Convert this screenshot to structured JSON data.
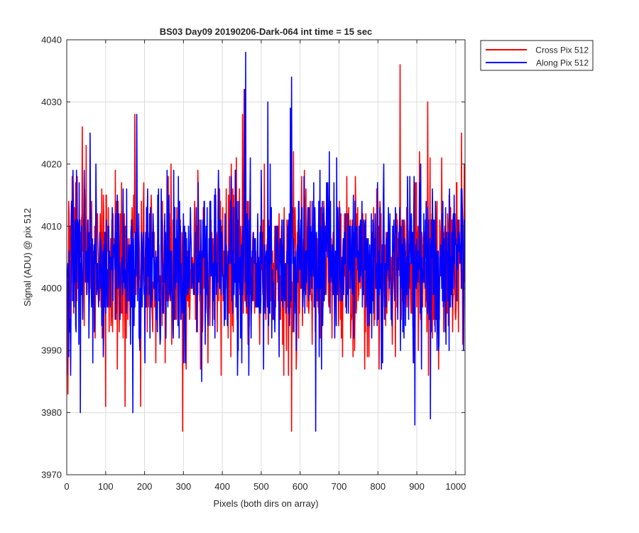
{
  "chart_data": {
    "type": "line",
    "title": "BS03 Day09 20190206-Dark-064 int time = 15 sec",
    "xlabel": "Pixels (both dirs on array)",
    "ylabel": "Signal (ADU) @ pix 512",
    "xlim": [
      0,
      1024
    ],
    "ylim": [
      3970,
      4040
    ],
    "xticks": [
      0,
      100,
      200,
      300,
      400,
      500,
      600,
      700,
      800,
      900,
      1000
    ],
    "yticks": [
      3970,
      3980,
      3990,
      4000,
      4010,
      4020,
      4030,
      4040
    ],
    "grid": true,
    "legend_position": "outside-top-right",
    "noise_model": {
      "samples_per_series": 1024,
      "mean_adu": 4004,
      "typical_range_adu": [
        3986,
        4022
      ]
    },
    "series": [
      {
        "name": "Cross Pix 512",
        "color": "#ff0000",
        "seed": 7,
        "peaks": [
          [
            3,
            3983
          ],
          [
            5,
            4014
          ],
          [
            40,
            4026
          ],
          [
            50,
            4023
          ],
          [
            100,
            3981
          ],
          [
            150,
            3981
          ],
          [
            175,
            4028
          ],
          [
            190,
            3981
          ],
          [
            298,
            3977
          ],
          [
            452,
            4028
          ],
          [
            456,
            4032
          ],
          [
            578,
            3977
          ],
          [
            857,
            4036
          ],
          [
            928,
            4030
          ],
          [
            1015,
            4025
          ],
          [
            1022,
            4020
          ]
        ]
      },
      {
        "name": "Along Pix 512",
        "color": "#0000ff",
        "seed": 13,
        "peaks": [
          [
            10,
            3986
          ],
          [
            35,
            3980
          ],
          [
            60,
            4025
          ],
          [
            170,
            3980
          ],
          [
            180,
            4028
          ],
          [
            347,
            3985
          ],
          [
            458,
            4032
          ],
          [
            460,
            4038
          ],
          [
            517,
            4030
          ],
          [
            575,
            4029
          ],
          [
            578,
            4034
          ],
          [
            640,
            3977
          ],
          [
            895,
            3978
          ],
          [
            935,
            3979
          ],
          [
            1020,
            3990
          ]
        ]
      }
    ]
  }
}
